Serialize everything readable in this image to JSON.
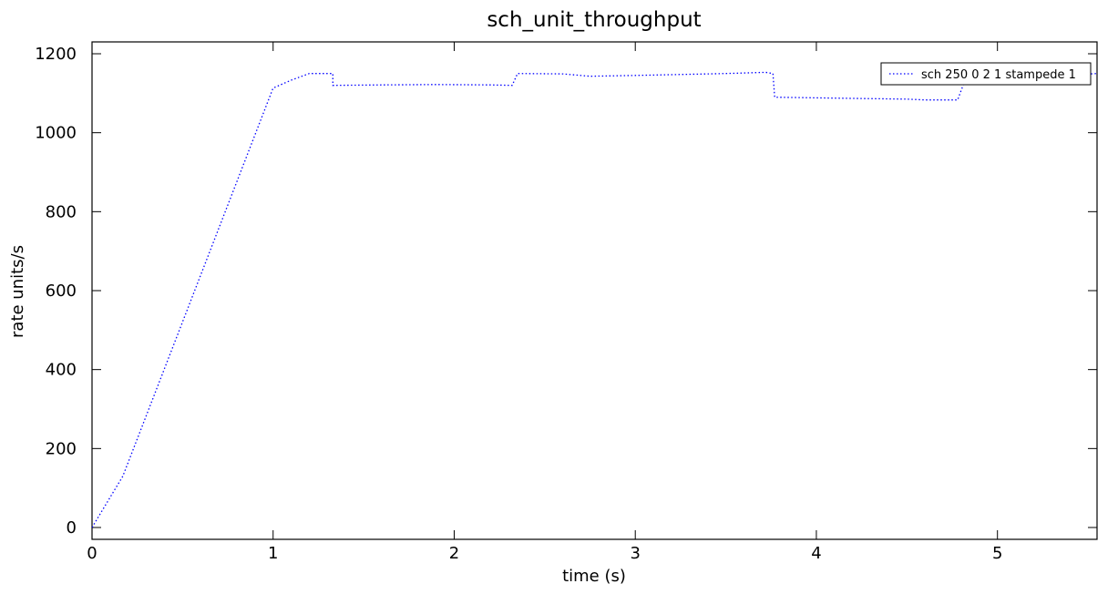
{
  "chart_data": {
    "type": "line",
    "title": "sch_unit_throughput",
    "xlabel": "time (s)",
    "ylabel": "rate units/s",
    "xlim": [
      0,
      5.55
    ],
    "ylim": [
      -30,
      1230
    ],
    "x_ticks": [
      0,
      1,
      2,
      3,
      4,
      5
    ],
    "x_tick_labels": [
      "0",
      "1",
      "2",
      "3",
      "4",
      "5"
    ],
    "y_ticks": [
      0,
      200,
      400,
      600,
      800,
      1000,
      1200
    ],
    "y_tick_labels": [
      "0",
      "200",
      "400",
      "600",
      "800",
      "1000",
      "1200"
    ],
    "grid": false,
    "legend_position": "top-right",
    "series": [
      {
        "name": "sch 250 0 2 1 stampede 1",
        "color": "#0000ff",
        "linestyle": "dotted",
        "x": [
          0,
          0.17,
          1.0,
          1.1,
          1.2,
          1.33,
          1.33,
          1.6,
          1.9,
          2.2,
          2.32,
          2.35,
          2.6,
          2.75,
          3.0,
          3.5,
          3.72,
          3.76,
          3.77,
          4.2,
          4.5,
          4.6,
          4.78,
          4.82,
          5.55
        ],
        "y": [
          0,
          130,
          1113,
          1133,
          1150,
          1150,
          1120,
          1121,
          1122,
          1121,
          1120,
          1150,
          1149,
          1143,
          1145,
          1150,
          1153,
          1150,
          1090,
          1087,
          1085,
          1083,
          1083,
          1132,
          1150
        ]
      }
    ]
  }
}
